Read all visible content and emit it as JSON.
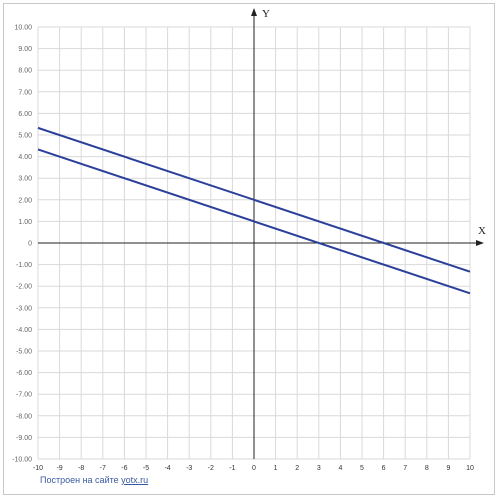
{
  "chart_data": {
    "type": "line",
    "title": "",
    "xlabel": "X",
    "ylabel": "Y",
    "xlim": [
      -10,
      10
    ],
    "ylim": [
      -10,
      10
    ],
    "grid": true,
    "x_ticks": [
      "-10",
      "-9",
      "-8",
      "-7",
      "-6",
      "-5",
      "-4",
      "-3",
      "-2",
      "-1",
      "0",
      "1",
      "2",
      "3",
      "4",
      "5",
      "6",
      "7",
      "8",
      "9",
      "10"
    ],
    "y_ticks": [
      "10.00",
      "9.00",
      "8.00",
      "7.00",
      "6.00",
      "5.00",
      "4.00",
      "3.00",
      "2.00",
      "1.00",
      "0",
      "-1.00",
      "-2.00",
      "-3.00",
      "-4.00",
      "-5.00",
      "-6.00",
      "-7.00",
      "-8.00",
      "-9.00",
      "-10.00"
    ],
    "series": [
      {
        "x": [
          -10,
          10
        ],
        "y": [
          5.33,
          -1.33
        ],
        "color": "#2b3f9b"
      },
      {
        "x": [
          -10,
          10
        ],
        "y": [
          4.33,
          -2.33
        ],
        "color": "#2b3f9b"
      }
    ]
  },
  "footer": {
    "credit_prefix": "Построен на сайте ",
    "credit_link": "yotx.ru"
  }
}
